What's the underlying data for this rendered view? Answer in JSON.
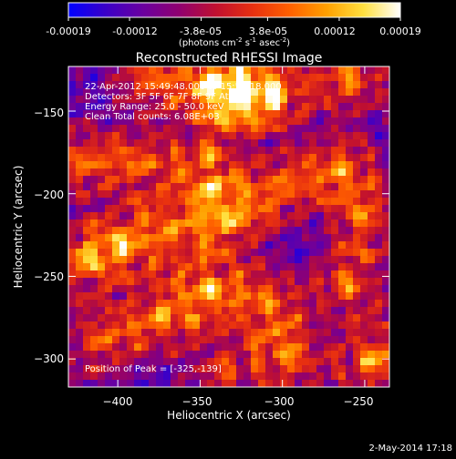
{
  "colorbar": {
    "ticks": [
      "-0.00019",
      "-0.00012",
      "-3.8e-05",
      "3.8e-05",
      "0.00012",
      "0.00019"
    ],
    "tick_values": [
      -0.00019,
      -0.00012,
      -3.8e-05,
      3.8e-05,
      0.00012,
      0.00019
    ],
    "range": [
      -0.00019,
      0.00019
    ],
    "units_parts": [
      "(photons cm",
      "-2",
      " s",
      "-1",
      " asec",
      "-2",
      ")"
    ],
    "colors": [
      "#0000ff",
      "#3a00c8",
      "#6a00a0",
      "#900070",
      "#c01030",
      "#e83010",
      "#ff6000",
      "#ffa000",
      "#ffe040",
      "#ffffff"
    ]
  },
  "chart_data": {
    "type": "heatmap",
    "title": "Reconstructed RHESSI Image",
    "xlabel": "Heliocentric X (arcsec)",
    "ylabel": "Heliocentric Y (arcsec)",
    "xlim": [
      -430,
      -235
    ],
    "ylim": [
      -317,
      -123
    ],
    "xticks": [
      -400,
      -350,
      -300,
      -250
    ],
    "yticks": [
      -150,
      -200,
      -250,
      -300
    ],
    "xtick_labels": [
      "−400",
      "−350",
      "−300",
      "−250"
    ],
    "ytick_labels": [
      "−150",
      "−200",
      "−250",
      "−300"
    ],
    "hot_spots": [
      {
        "x": -325,
        "y": -139,
        "v": 1.0
      },
      {
        "x": -345,
        "y": -135,
        "v": 0.9
      },
      {
        "x": -305,
        "y": -140,
        "v": 0.85
      },
      {
        "x": -380,
        "y": -130,
        "v": 0.7
      },
      {
        "x": -260,
        "y": -130,
        "v": 0.8
      },
      {
        "x": -420,
        "y": -180,
        "v": 0.7
      },
      {
        "x": -385,
        "y": -182,
        "v": 0.75
      },
      {
        "x": -345,
        "y": -175,
        "v": 0.6
      },
      {
        "x": -300,
        "y": -195,
        "v": 0.75
      },
      {
        "x": -265,
        "y": -185,
        "v": 0.8
      },
      {
        "x": -250,
        "y": -215,
        "v": 0.7
      },
      {
        "x": -420,
        "y": -240,
        "v": 0.8
      },
      {
        "x": -395,
        "y": -230,
        "v": 0.85
      },
      {
        "x": -365,
        "y": -222,
        "v": 0.7
      },
      {
        "x": -330,
        "y": -215,
        "v": 0.8
      },
      {
        "x": -260,
        "y": -255,
        "v": 0.75
      },
      {
        "x": -345,
        "y": -258,
        "v": 0.95
      },
      {
        "x": -310,
        "y": -265,
        "v": 0.75
      },
      {
        "x": -375,
        "y": -275,
        "v": 0.8
      },
      {
        "x": -410,
        "y": -288,
        "v": 0.7
      },
      {
        "x": -295,
        "y": -298,
        "v": 0.8
      },
      {
        "x": -245,
        "y": -300,
        "v": 0.85
      },
      {
        "x": -335,
        "y": -305,
        "v": 0.6
      },
      {
        "x": -345,
        "y": -198,
        "v": 0.55
      }
    ]
  },
  "info": {
    "lines": [
      "22-Apr-2012 15:49:48.000 to 15:54:18.000",
      "Detectors: 3F 5F 6F 7F 8F 9F  Att 0",
      "Energy Range: 25.0 - 50.0 keV",
      "Clean    Total counts: 6.08E+03"
    ],
    "peak": "Position of Peak = [-325,-139]"
  },
  "footer": {
    "timestamp": "2-May-2014 17:18"
  }
}
